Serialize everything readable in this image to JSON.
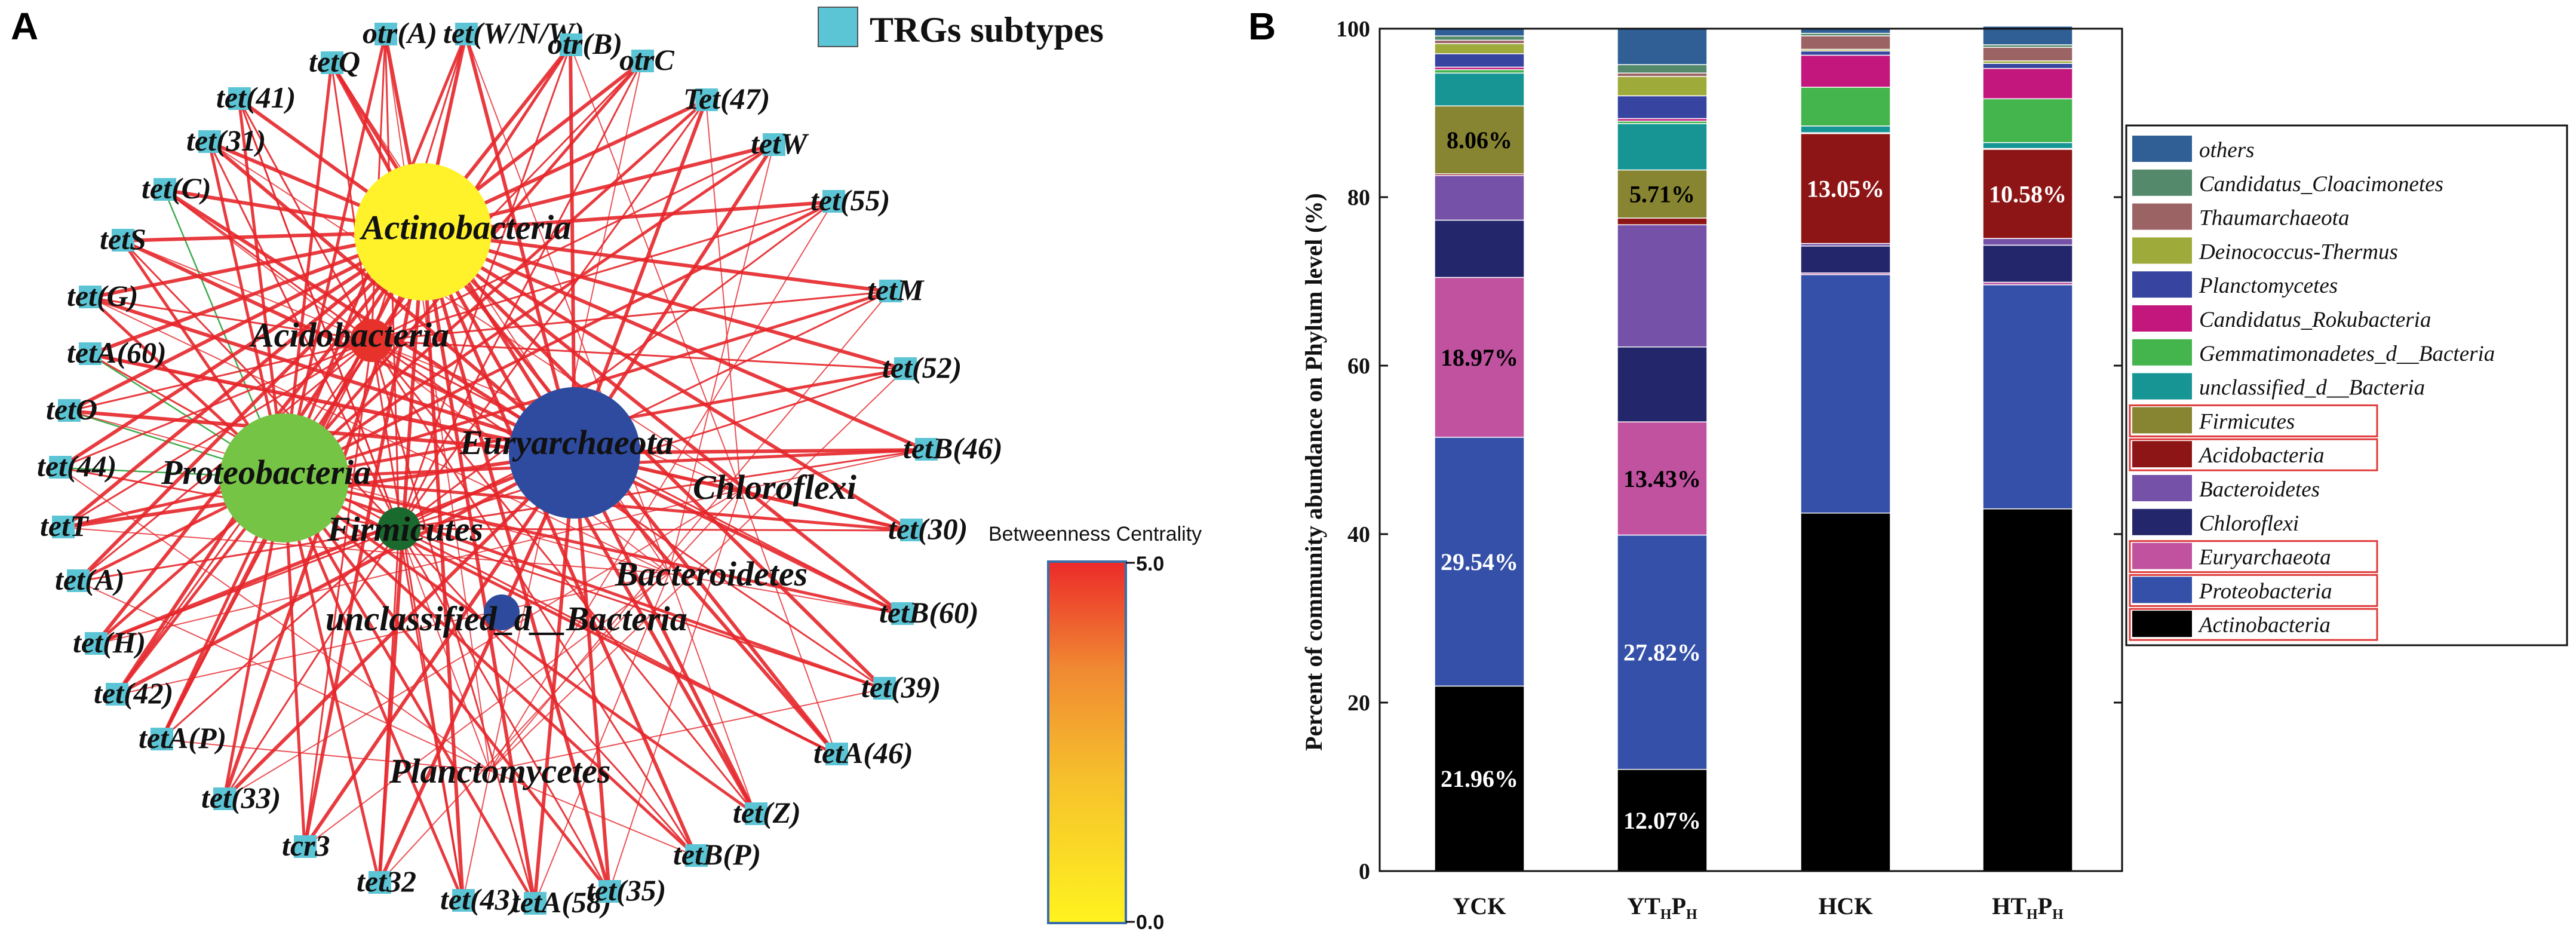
{
  "panels": {
    "a_letter": "A",
    "b_letter": "B"
  },
  "network": {
    "legend_label": "TRGs subtypes",
    "node_color": "#5bc4d5",
    "colorbar": {
      "title": "Betweenness Centrality",
      "max_label": "5.0",
      "min_label": "0.0"
    },
    "genes": [
      "otr(A)",
      "tet(W/N/W)",
      "otr(B)",
      "otrC",
      "tetQ",
      "Tet(47)",
      "tet(41)",
      "tetW",
      "tet(31)",
      "tet(55)",
      "tet(C)",
      "tetS",
      "tetM",
      "tet(G)",
      "tetA(60)",
      "tet(52)",
      "tetO",
      "tetB(46)",
      "tet(44)",
      "tetT",
      "tet(30)",
      "tet(A)",
      "tetB(60)",
      "tet(H)",
      "tet(39)",
      "tet(42)",
      "tetA(46)",
      "tetA(P)",
      "tet(Z)",
      "tet(33)",
      "tetB(P)",
      "tcr3",
      "tet32",
      "tet(43)",
      "tetA(58)",
      "tet(35)"
    ],
    "phyla": [
      {
        "name": "Actinobacteria",
        "color": "#fff22a"
      },
      {
        "name": "Acidobacteria",
        "color": "#e6322a"
      },
      {
        "name": "Euryarchaeota",
        "color": "#2e4ba0"
      },
      {
        "name": "Proteobacteria",
        "color": "#76c445"
      },
      {
        "name": "Firmicutes",
        "color": "#1a6a2e"
      },
      {
        "name": "unclassified_d__Bacteria",
        "color": "#2d4a9c"
      },
      {
        "name": "Chloroflexi",
        "color": ""
      },
      {
        "name": "Bacteroidetes",
        "color": ""
      },
      {
        "name": "Planctomycetes",
        "color": ""
      }
    ]
  },
  "chart_data": {
    "type": "bar",
    "stacked": true,
    "ylabel": "Percent of community abundance on Phylum level (%)",
    "ylim": [
      0,
      100
    ],
    "yticks": [
      "0",
      "20",
      "40",
      "60",
      "80",
      "100"
    ],
    "categories": [
      "YCK",
      "YTHPH",
      "HCK",
      "HTHPH"
    ],
    "category_labels": [
      {
        "main": "YCK",
        "sub": ""
      },
      {
        "main": "YT",
        "sub": "H",
        "main2": "P",
        "sub2": "H"
      },
      {
        "main": "HCK",
        "sub": ""
      },
      {
        "main": "HT",
        "sub": "H",
        "main2": "P",
        "sub2": "H"
      }
    ],
    "series": [
      {
        "name": "Actinobacteria",
        "color": "#000000",
        "boxed": true,
        "values": [
          21.96,
          12.07,
          42.5,
          43.0
        ]
      },
      {
        "name": "Proteobacteria",
        "color": "#3550a8",
        "boxed": true,
        "values": [
          29.54,
          27.82,
          28.3,
          26.6
        ]
      },
      {
        "name": "Euryarchaeota",
        "color": "#c052a0",
        "boxed": true,
        "values": [
          18.97,
          13.43,
          0.2,
          0.3
        ]
      },
      {
        "name": "Chloroflexi",
        "color": "#23266b",
        "boxed": false,
        "values": [
          6.8,
          8.9,
          3.2,
          4.4
        ]
      },
      {
        "name": "Bacteroidetes",
        "color": "#7552a8",
        "boxed": false,
        "values": [
          5.3,
          14.5,
          0.3,
          0.8
        ]
      },
      {
        "name": "Acidobacteria",
        "color": "#8e1515",
        "boxed": true,
        "values": [
          0.2,
          0.8,
          13.05,
          10.58
        ]
      },
      {
        "name": "Firmicutes",
        "color": "#878531",
        "boxed": true,
        "values": [
          8.06,
          5.71,
          0.1,
          0.1
        ]
      },
      {
        "name": "unclassified_d__Bacteria",
        "color": "#179595",
        "boxed": false,
        "values": [
          3.9,
          5.5,
          0.8,
          0.7
        ]
      },
      {
        "name": "Gemmatimonadetes_d__Bacteria",
        "color": "#44b54d",
        "boxed": false,
        "values": [
          0.4,
          0.3,
          4.6,
          5.2
        ]
      },
      {
        "name": "Candidatus_Rokubacteria",
        "color": "#c3177d",
        "boxed": false,
        "values": [
          0.3,
          0.3,
          3.8,
          3.6
        ]
      },
      {
        "name": "Planctomycetes",
        "color": "#3744a0",
        "boxed": false,
        "values": [
          1.6,
          2.7,
          0.5,
          0.6
        ]
      },
      {
        "name": "Deinococcus-Thermus",
        "color": "#9eab3a",
        "boxed": false,
        "values": [
          1.2,
          2.3,
          0.2,
          0.3
        ]
      },
      {
        "name": "Thaumarchaeota",
        "color": "#9b6363",
        "boxed": false,
        "values": [
          0.4,
          0.4,
          1.6,
          1.6
        ]
      },
      {
        "name": "Candidatus_Cloacimonetes",
        "color": "#55896b",
        "boxed": false,
        "values": [
          0.5,
          1.0,
          0.3,
          0.3
        ]
      },
      {
        "name": "others",
        "color": "#305f96",
        "boxed": false,
        "values": [
          0.87,
          4.27,
          0.55,
          2.22
        ]
      }
    ],
    "data_labels": [
      {
        "series": "Actinobacteria",
        "category": "YCK",
        "text": "21.96%",
        "color": "#ffffff"
      },
      {
        "series": "Actinobacteria",
        "category": "YTHPH",
        "text": "12.07%",
        "color": "#ffffff"
      },
      {
        "series": "Proteobacteria",
        "category": "YCK",
        "text": "29.54%",
        "color": "#ffffff"
      },
      {
        "series": "Proteobacteria",
        "category": "YTHPH",
        "text": "27.82%",
        "color": "#ffffff"
      },
      {
        "series": "Euryarchaeota",
        "category": "YCK",
        "text": "18.97%",
        "color": "#000000"
      },
      {
        "series": "Euryarchaeota",
        "category": "YTHPH",
        "text": "13.43%",
        "color": "#000000"
      },
      {
        "series": "Firmicutes",
        "category": "YCK",
        "text": "8.06%",
        "color": "#000000"
      },
      {
        "series": "Firmicutes",
        "category": "YTHPH",
        "text": "5.71%",
        "color": "#000000"
      },
      {
        "series": "Acidobacteria",
        "category": "HCK",
        "text": "13.05%",
        "color": "#ffffff"
      },
      {
        "series": "Acidobacteria",
        "category": "HTHPH",
        "text": "10.58%",
        "color": "#ffffff"
      }
    ],
    "legend_order": [
      "others",
      "Candidatus_Cloacimonetes",
      "Thaumarchaeota",
      "Deinococcus-Thermus",
      "Planctomycetes",
      "Candidatus_Rokubacteria",
      "Gemmatimonadetes_d__Bacteria",
      "unclassified_d__Bacteria",
      "Firmicutes",
      "Acidobacteria",
      "Bacteroidetes",
      "Chloroflexi",
      "Euryarchaeota",
      "Proteobacteria",
      "Actinobacteria"
    ],
    "legend_position": "right"
  }
}
